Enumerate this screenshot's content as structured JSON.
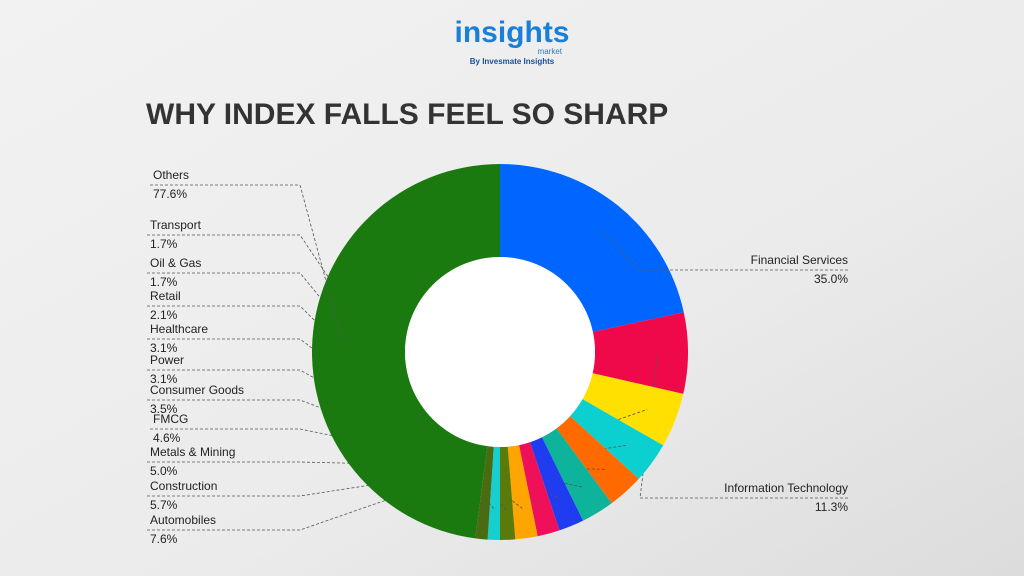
{
  "brand": {
    "name": "insights",
    "sub": "market",
    "tagline": "By Invesmate Insights"
  },
  "chart_data": {
    "type": "donut",
    "title": "WHY INDEX FALLS FEEL SO SHARP",
    "categories": [
      "Financial Services",
      "Information Technology",
      "Automobiles",
      "Construction",
      "Metals & Mining",
      "FMCG",
      "Consumer Goods",
      "Power",
      "Healthcare",
      "Retail",
      "Oil & Gas",
      "Transport",
      "Others"
    ],
    "values": [
      35.0,
      11.3,
      7.6,
      5.7,
      5.0,
      4.6,
      3.5,
      3.1,
      3.1,
      2.1,
      1.7,
      1.7,
      77.6
    ],
    "value_labels": [
      "35.0%",
      "11.3%",
      "7.6%",
      "5.7%",
      "5.0%",
      "4.6%",
      "3.5%",
      "3.1%",
      "3.1%",
      "2.1%",
      "1.7%",
      "1.7%",
      "77.6%"
    ],
    "colors": [
      "#0066ff",
      "#f0094a",
      "#ffe000",
      "#0ccfcf",
      "#ff6a00",
      "#0db39b",
      "#1f3cf0",
      "#f0105a",
      "#ffa500",
      "#5a7a0a",
      "#17cfd0",
      "#4a6b12",
      "#1a7a10"
    ]
  }
}
